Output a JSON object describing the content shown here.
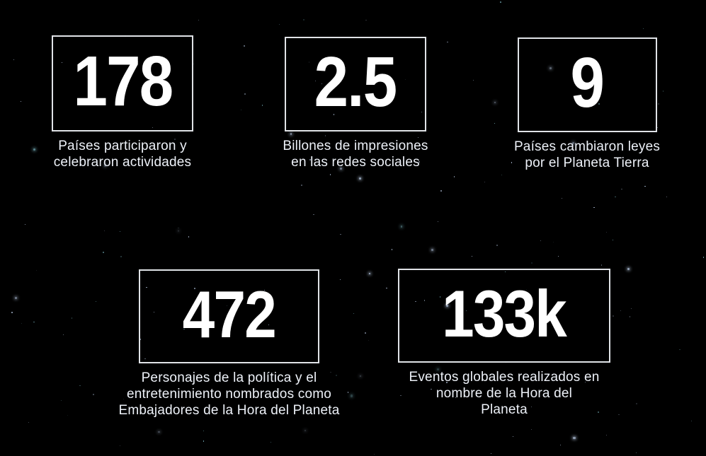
{
  "slide": {
    "stats": [
      {
        "value": "178",
        "label": "Países participaron y\ncelebraron actividades"
      },
      {
        "value": "2.5",
        "label": "Billones de impresiones\nen las redes sociales"
      },
      {
        "value": "9",
        "label": "Países cambiaron leyes\npor el Planeta Tierra"
      },
      {
        "value": "472",
        "label": "Personajes de la política y el\nentretenimiento nombrados como\nEmbajadores de la Hora del Planeta"
      },
      {
        "value": "133k",
        "label": "Eventos globales realizados en\nnombre de la Hora del\nPlaneta"
      }
    ],
    "colors": {
      "number_text": "#ffffff",
      "label_text": "#edf1f8",
      "box_border": "#f3f6fb",
      "background_dark": "#04060c",
      "background_navy": "#0d1630",
      "nebula_blue": "#3e5ca0",
      "star_white": "#cfe2ff",
      "star_teal": "#8fd4e0"
    }
  }
}
